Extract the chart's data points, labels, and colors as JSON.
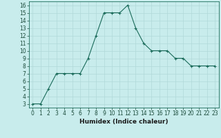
{
  "x": [
    0,
    1,
    2,
    3,
    4,
    5,
    6,
    7,
    8,
    9,
    10,
    11,
    12,
    13,
    14,
    15,
    16,
    17,
    18,
    19,
    20,
    21,
    22,
    23
  ],
  "y": [
    3,
    3,
    5,
    7,
    7,
    7,
    7,
    9,
    12,
    15,
    15,
    15,
    16,
    13,
    11,
    10,
    10,
    10,
    9,
    9,
    8,
    8,
    8,
    8
  ],
  "title": "",
  "xlabel": "Humidex (Indice chaleur)",
  "ylabel": "",
  "line_color": "#1a6b5a",
  "marker": "+",
  "bg_color": "#c8ecec",
  "grid_color": "#b0d8d8",
  "xlim": [
    -0.5,
    23.5
  ],
  "ylim": [
    2.5,
    16.5
  ],
  "xticks": [
    0,
    1,
    2,
    3,
    4,
    5,
    6,
    7,
    8,
    9,
    10,
    11,
    12,
    13,
    14,
    15,
    16,
    17,
    18,
    19,
    20,
    21,
    22,
    23
  ],
  "yticks": [
    3,
    4,
    5,
    6,
    7,
    8,
    9,
    10,
    11,
    12,
    13,
    14,
    15,
    16
  ],
  "tick_fontsize": 5.5,
  "xlabel_fontsize": 6.5,
  "xlabel_fontweight": "bold"
}
